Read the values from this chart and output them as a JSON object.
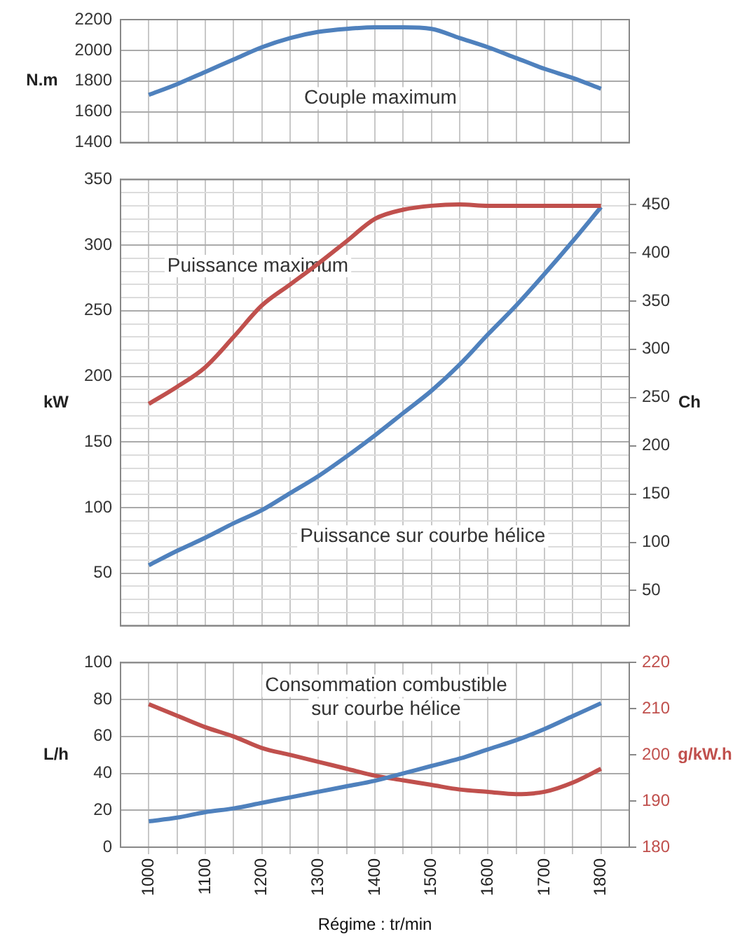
{
  "chart_data": [
    {
      "type": "line",
      "ylabel": "N.m",
      "x": [
        1000,
        1050,
        1100,
        1150,
        1200,
        1250,
        1300,
        1350,
        1400,
        1450,
        1500,
        1550,
        1600,
        1650,
        1700,
        1750,
        1800
      ],
      "series": [
        {
          "color": "#4f81bd",
          "values": [
            1710,
            1780,
            1860,
            1940,
            2020,
            2080,
            2120,
            2140,
            2150,
            2150,
            2140,
            2080,
            2020,
            1950,
            1880,
            1820,
            1750
          ]
        }
      ],
      "xlim": [
        950,
        1850
      ],
      "xticks": [
        1000,
        {
          "value": 1050,
          "label": null
        },
        1100,
        {
          "value": 1150,
          "label": null
        },
        1200,
        {
          "value": 1250,
          "label": null
        },
        1300,
        {
          "value": 1350,
          "label": null
        },
        1400,
        {
          "value": 1450,
          "label": null
        },
        1500,
        {
          "value": 1550,
          "label": null
        },
        1600,
        {
          "value": 1650,
          "label": null
        },
        1700,
        {
          "value": 1750,
          "label": null
        },
        1800
      ],
      "ylim": [
        1400,
        2200
      ],
      "yticks": [
        1400,
        1600,
        1800,
        2000,
        2200
      ],
      "grid": true,
      "tick_labels": "y",
      "annotations": [
        "Couple maximum"
      ]
    },
    {
      "type": "line",
      "ylabel": "kW",
      "y2label": "Ch",
      "x": [
        1000,
        1050,
        1100,
        1150,
        1200,
        1250,
        1300,
        1350,
        1400,
        1450,
        1500,
        1550,
        1600,
        1650,
        1700,
        1750,
        1800
      ],
      "series": [
        {
          "color": "#c0504d",
          "values": [
            179,
            192,
            207,
            230,
            254,
            270,
            286,
            303,
            320,
            327,
            330,
            331,
            330,
            330,
            330,
            330,
            330
          ]
        },
        {
          "color": "#4f81bd",
          "values": [
            56,
            67,
            77,
            88,
            98,
            111,
            124,
            139,
            155,
            172,
            189,
            209,
            232,
            254,
            278,
            303,
            329
          ]
        }
      ],
      "xlim": [
        950,
        1850
      ],
      "xticks": [
        1000,
        {
          "value": 1050,
          "label": null
        },
        1100,
        {
          "value": 1150,
          "label": null
        },
        1200,
        {
          "value": 1250,
          "label": null
        },
        1300,
        {
          "value": 1350,
          "label": null
        },
        1400,
        {
          "value": 1450,
          "label": null
        },
        1500,
        {
          "value": 1550,
          "label": null
        },
        1600,
        {
          "value": 1650,
          "label": null
        },
        1700,
        {
          "value": 1750,
          "label": null
        },
        1800
      ],
      "ylim": [
        10,
        350
      ],
      "yticks": [
        {
          "value": 10,
          "label": null
        },
        {
          "value": 20,
          "label": null
        },
        {
          "value": 30,
          "label": null
        },
        {
          "value": 40,
          "label": null
        },
        50,
        {
          "value": 60,
          "label": null
        },
        {
          "value": 70,
          "label": null
        },
        {
          "value": 80,
          "label": null
        },
        {
          "value": 90,
          "label": null
        },
        100,
        {
          "value": 110,
          "label": null
        },
        {
          "value": 120,
          "label": null
        },
        {
          "value": 130,
          "label": null
        },
        {
          "value": 140,
          "label": null
        },
        150,
        {
          "value": 160,
          "label": null
        },
        {
          "value": 170,
          "label": null
        },
        {
          "value": 180,
          "label": null
        },
        {
          "value": 190,
          "label": null
        },
        200,
        {
          "value": 210,
          "label": null
        },
        {
          "value": 220,
          "label": null
        },
        {
          "value": 230,
          "label": null
        },
        {
          "value": 240,
          "label": null
        },
        250,
        {
          "value": 260,
          "label": null
        },
        {
          "value": 270,
          "label": null
        },
        {
          "value": 280,
          "label": null
        },
        {
          "value": 290,
          "label": null
        },
        300,
        {
          "value": 310,
          "label": null
        },
        {
          "value": 320,
          "label": null
        },
        {
          "value": 330,
          "label": null
        },
        {
          "value": 340,
          "label": null
        },
        350
      ],
      "y2lim": [
        13.6,
        475.9
      ],
      "y2ticks": [
        50,
        100,
        150,
        200,
        250,
        300,
        350,
        400,
        450
      ],
      "grid": true,
      "tick_labels": "y",
      "annotations": [
        "Puissance maximum",
        "Puissance sur courbe hélice"
      ]
    },
    {
      "type": "line",
      "ylabel": "L/h",
      "y2label": "g/kW.h",
      "xlabel": "Régime : tr/min",
      "x": [
        1000,
        1050,
        1100,
        1150,
        1200,
        1250,
        1300,
        1350,
        1400,
        1450,
        1500,
        1550,
        1600,
        1650,
        1700,
        1750,
        1800
      ],
      "series": [
        {
          "color": "#4f81bd",
          "values": [
            14,
            16,
            19,
            21,
            24,
            27,
            30,
            33,
            36,
            40,
            44,
            48,
            53,
            58,
            64,
            71,
            78
          ]
        },
        {
          "color": "#c0504d",
          "axis": "y2",
          "values": [
            211,
            208.5,
            206,
            204,
            201.5,
            200,
            198.5,
            197,
            195.5,
            194.5,
            193.5,
            192.5,
            192,
            191.5,
            192,
            194,
            197
          ]
        }
      ],
      "xlim": [
        950,
        1850
      ],
      "xticks": [
        1000,
        {
          "value": 1050,
          "label": null
        },
        1100,
        {
          "value": 1150,
          "label": null
        },
        1200,
        {
          "value": 1250,
          "label": null
        },
        1300,
        {
          "value": 1350,
          "label": null
        },
        1400,
        {
          "value": 1450,
          "label": null
        },
        1500,
        {
          "value": 1550,
          "label": null
        },
        1600,
        {
          "value": 1650,
          "label": null
        },
        1700,
        {
          "value": 1750,
          "label": null
        },
        1800
      ],
      "ylim": [
        0,
        100
      ],
      "yticks": [
        0,
        20,
        40,
        60,
        80,
        100
      ],
      "y2lim": [
        180,
        220
      ],
      "y2ticks": [
        180,
        190,
        200,
        210,
        220
      ],
      "grid": true,
      "annotations": [
        "Consommation combustible\nsur courbe hélice"
      ]
    }
  ]
}
